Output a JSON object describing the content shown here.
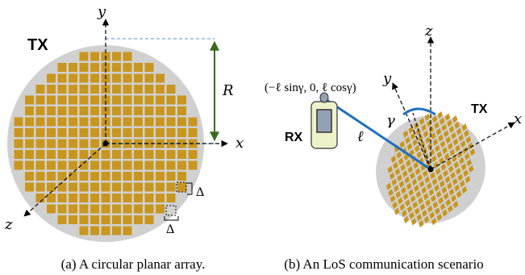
{
  "panel_a": {
    "tx_label": "TX",
    "axis_x": "x",
    "axis_y": "y",
    "axis_z": "z",
    "radius_label": "R",
    "spacing_v": "Δ",
    "spacing_h": "Δ",
    "caption": "(a) A circular planar array."
  },
  "panel_b": {
    "axis_x": "x",
    "axis_y": "y",
    "axis_z": "z",
    "tx_label": "TX",
    "rx_label": "RX",
    "rx_position": "(−ℓ sinγ, 0, ℓ cosγ)",
    "distance_label": "ℓ",
    "angle_label": "γ",
    "caption": "(b) An LoS communication scenario"
  },
  "colors": {
    "array_disk": "#d0d0d0",
    "element": "#c8961e",
    "rx_body": "#eef2c8",
    "rx_screen": "#93a2b3",
    "link": "#1f6fbf",
    "radius_arrow": "#3b6a1e",
    "guide_dash": "#5b8fd0"
  }
}
